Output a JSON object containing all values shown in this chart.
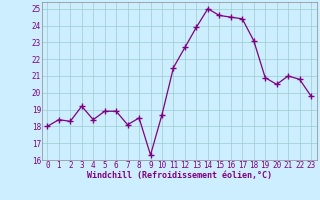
{
  "x": [
    0,
    1,
    2,
    3,
    4,
    5,
    6,
    7,
    8,
    9,
    10,
    11,
    12,
    13,
    14,
    15,
    16,
    17,
    18,
    19,
    20,
    21,
    22,
    23
  ],
  "y": [
    18.0,
    18.4,
    18.3,
    19.2,
    18.4,
    18.9,
    18.9,
    18.1,
    18.5,
    16.3,
    18.7,
    21.5,
    22.7,
    23.9,
    25.0,
    24.6,
    24.5,
    24.4,
    23.1,
    20.9,
    20.5,
    21.0,
    20.8,
    19.8
  ],
  "line_color": "#800080",
  "marker": "+",
  "marker_size": 4,
  "marker_linewidth": 1.0,
  "line_width": 0.9,
  "bg_color": "#cceeff",
  "grid_color": "#99cccc",
  "xlabel": "Windchill (Refroidissement éolien,°C)",
  "xlabel_color": "#800080",
  "xlabel_fontsize": 6.0,
  "tick_color": "#800080",
  "tick_fontsize": 5.5,
  "ylim": [
    16,
    25.4
  ],
  "yticks": [
    16,
    17,
    18,
    19,
    20,
    21,
    22,
    23,
    24,
    25
  ],
  "xlim": [
    -0.5,
    23.5
  ],
  "xticks": [
    0,
    1,
    2,
    3,
    4,
    5,
    6,
    7,
    8,
    9,
    10,
    11,
    12,
    13,
    14,
    15,
    16,
    17,
    18,
    19,
    20,
    21,
    22,
    23
  ]
}
